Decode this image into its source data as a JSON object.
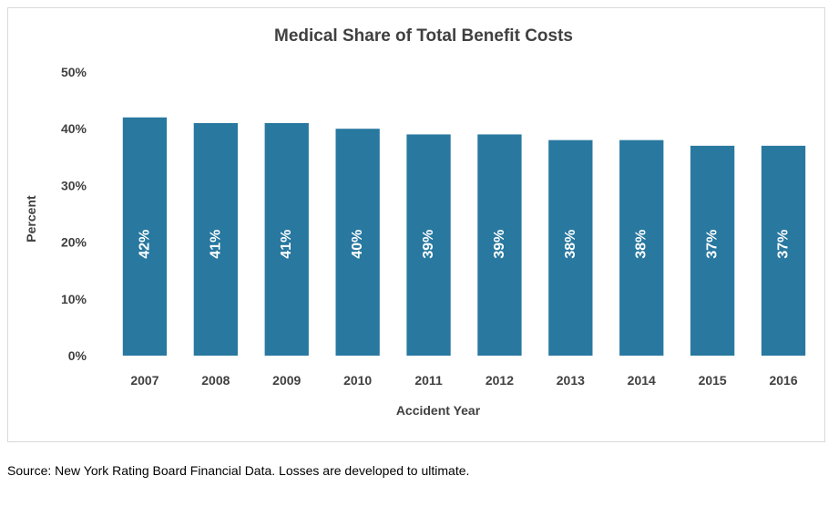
{
  "chart_data": {
    "type": "bar",
    "title": "Medical Share of Total Benefit Costs",
    "xlabel": "Accident Year",
    "ylabel": "Percent",
    "categories": [
      "2007",
      "2008",
      "2009",
      "2010",
      "2011",
      "2012",
      "2013",
      "2014",
      "2015",
      "2016"
    ],
    "values": [
      42,
      41,
      41,
      40,
      39,
      39,
      38,
      38,
      37,
      37
    ],
    "data_labels": [
      "42%",
      "41%",
      "41%",
      "40%",
      "39%",
      "39%",
      "38%",
      "38%",
      "37%",
      "37%"
    ],
    "ylim": [
      0,
      50
    ],
    "yticks": [
      0,
      10,
      20,
      30,
      40,
      50
    ],
    "ytick_labels": [
      "0%",
      "10%",
      "20%",
      "30%",
      "40%",
      "50%"
    ],
    "grid": false,
    "legend": "none",
    "bar_color": "#2878a0"
  },
  "source_note": "Source: New York Rating Board Financial Data.  Losses are developed to ultimate."
}
